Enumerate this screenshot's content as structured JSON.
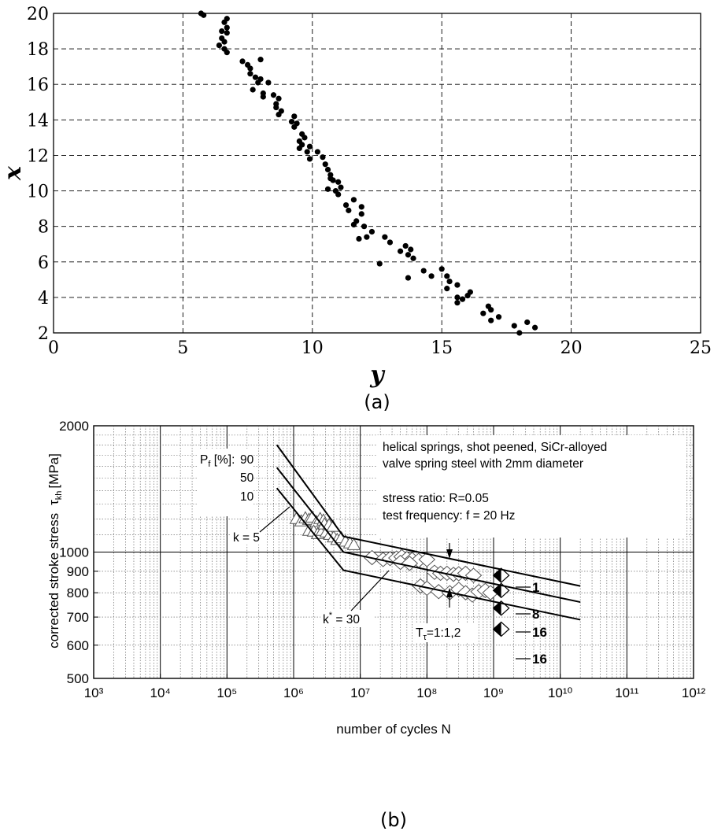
{
  "chart_data": [
    {
      "type": "scatter",
      "xlabel": "y",
      "ylabel": "x",
      "xlim": [
        0,
        25
      ],
      "ylim": [
        2,
        20
      ],
      "x_ticks": [
        0,
        5,
        10,
        15,
        20,
        25
      ],
      "y_ticks": [
        2,
        4,
        6,
        8,
        10,
        12,
        14,
        16,
        18,
        20
      ],
      "grid": true,
      "caption": "(a)",
      "points": [
        [
          5.7,
          20.0
        ],
        [
          5.8,
          19.9
        ],
        [
          6.7,
          19.7
        ],
        [
          6.6,
          19.5
        ],
        [
          6.7,
          19.2
        ],
        [
          6.5,
          19.0
        ],
        [
          6.7,
          18.9
        ],
        [
          6.5,
          18.6
        ],
        [
          6.6,
          18.4
        ],
        [
          6.4,
          18.2
        ],
        [
          6.6,
          18.0
        ],
        [
          6.7,
          17.8
        ],
        [
          7.3,
          17.3
        ],
        [
          8.0,
          17.4
        ],
        [
          7.5,
          17.1
        ],
        [
          7.6,
          16.9
        ],
        [
          7.6,
          16.6
        ],
        [
          7.8,
          16.4
        ],
        [
          8.0,
          16.3
        ],
        [
          7.9,
          16.1
        ],
        [
          8.3,
          16.1
        ],
        [
          7.7,
          15.7
        ],
        [
          8.1,
          15.5
        ],
        [
          8.1,
          15.3
        ],
        [
          8.5,
          15.4
        ],
        [
          8.7,
          15.2
        ],
        [
          8.6,
          14.9
        ],
        [
          8.6,
          14.7
        ],
        [
          8.8,
          14.5
        ],
        [
          8.7,
          14.3
        ],
        [
          9.3,
          14.2
        ],
        [
          9.2,
          13.9
        ],
        [
          9.4,
          13.8
        ],
        [
          9.3,
          13.6
        ],
        [
          9.6,
          13.2
        ],
        [
          9.7,
          13.0
        ],
        [
          9.5,
          12.8
        ],
        [
          9.6,
          12.6
        ],
        [
          9.9,
          12.5
        ],
        [
          9.5,
          12.4
        ],
        [
          9.8,
          12.2
        ],
        [
          10.2,
          12.2
        ],
        [
          9.9,
          11.8
        ],
        [
          10.4,
          11.9
        ],
        [
          10.5,
          11.5
        ],
        [
          10.6,
          11.2
        ],
        [
          10.7,
          10.9
        ],
        [
          10.7,
          10.7
        ],
        [
          10.8,
          10.6
        ],
        [
          11.0,
          10.5
        ],
        [
          11.1,
          10.2
        ],
        [
          10.9,
          10.0
        ],
        [
          11.0,
          9.8
        ],
        [
          10.6,
          10.1
        ],
        [
          11.6,
          9.5
        ],
        [
          11.3,
          9.2
        ],
        [
          11.4,
          8.9
        ],
        [
          11.9,
          9.1
        ],
        [
          11.9,
          8.7
        ],
        [
          11.7,
          8.3
        ],
        [
          11.6,
          8.1
        ],
        [
          12.0,
          8.0
        ],
        [
          12.3,
          7.7
        ],
        [
          11.8,
          7.3
        ],
        [
          12.1,
          7.4
        ],
        [
          12.8,
          7.4
        ],
        [
          13.0,
          7.1
        ],
        [
          13.6,
          6.9
        ],
        [
          13.4,
          6.6
        ],
        [
          13.8,
          6.7
        ],
        [
          13.7,
          6.4
        ],
        [
          13.9,
          6.2
        ],
        [
          12.6,
          5.9
        ],
        [
          13.7,
          5.1
        ],
        [
          14.3,
          5.5
        ],
        [
          14.6,
          5.2
        ],
        [
          15.0,
          5.6
        ],
        [
          15.2,
          5.2
        ],
        [
          15.3,
          4.9
        ],
        [
          15.6,
          4.7
        ],
        [
          15.2,
          4.5
        ],
        [
          16.1,
          4.3
        ],
        [
          16.0,
          4.1
        ],
        [
          15.6,
          4.0
        ],
        [
          15.8,
          3.9
        ],
        [
          15.6,
          3.7
        ],
        [
          16.8,
          3.5
        ],
        [
          16.9,
          3.3
        ],
        [
          16.6,
          3.1
        ],
        [
          17.2,
          2.9
        ],
        [
          16.9,
          2.7
        ],
        [
          17.8,
          2.4
        ],
        [
          18.3,
          2.6
        ],
        [
          18.6,
          2.3
        ],
        [
          18.0,
          2.0
        ]
      ]
    },
    {
      "type": "line",
      "xscale": "log",
      "yscale": "log",
      "xlabel": "number of cycles   N",
      "ylabel": "corrected stroke stress  τkh [MPa]",
      "xlim": [
        1000,
        1000000000000
      ],
      "ylim": [
        500,
        2000
      ],
      "x_ticks": [
        "10³",
        "10⁴",
        "10⁵",
        "10⁶",
        "10⁷",
        "10⁸",
        "10⁹",
        "10¹⁰",
        "10¹¹",
        "10¹²"
      ],
      "y_ticks": [
        500,
        600,
        700,
        800,
        900,
        1000,
        2000
      ],
      "caption": "(b)",
      "legend_title": "Pf [%]:",
      "series": [
        {
          "name": "90",
          "x": [
            560000,
            5600000,
            20000000000
          ],
          "y": [
            1800,
            1090,
            830
          ]
        },
        {
          "name": "50",
          "x": [
            560000,
            5600000,
            20000000000
          ],
          "y": [
            1590,
            1000,
            760
          ]
        },
        {
          "name": "10",
          "x": [
            560000,
            5600000,
            20000000000
          ],
          "y": [
            1420,
            905,
            690
          ]
        }
      ],
      "markers": {
        "triangles": [
          [
            1100000,
            1200
          ],
          [
            1300000,
            1185
          ],
          [
            1500000,
            1205
          ],
          [
            1700000,
            1195
          ],
          [
            1900000,
            1210
          ],
          [
            2200000,
            1180
          ],
          [
            2500000,
            1200
          ],
          [
            2800000,
            1190
          ],
          [
            1700000,
            1125
          ],
          [
            2000000,
            1120
          ],
          [
            2300000,
            1105
          ],
          [
            2700000,
            1125
          ],
          [
            3100000,
            1115
          ],
          [
            3500000,
            1100
          ],
          [
            4000000,
            1085
          ],
          [
            4500000,
            1070
          ],
          [
            5200000,
            1080
          ],
          [
            6000000,
            1060
          ],
          [
            7000000,
            1050
          ],
          [
            8000000,
            1040
          ],
          [
            2900000,
            1165
          ],
          [
            3400000,
            1160
          ],
          [
            3900000,
            1150
          ]
        ],
        "diamonds": [
          [
            15000000,
            970
          ],
          [
            22000000,
            960
          ],
          [
            28000000,
            965
          ],
          [
            35000000,
            968
          ],
          [
            42000000,
            975
          ],
          [
            50000000,
            965
          ],
          [
            60000000,
            960
          ],
          [
            75000000,
            955
          ],
          [
            100000000,
            960
          ],
          [
            40000000,
            945
          ],
          [
            55000000,
            940
          ],
          [
            130000000,
            895
          ],
          [
            160000000,
            890
          ],
          [
            200000000,
            890
          ],
          [
            250000000,
            885
          ],
          [
            300000000,
            888
          ],
          [
            380000000,
            890
          ],
          [
            500000000,
            880
          ],
          [
            80000000,
            830
          ],
          [
            100000000,
            820
          ],
          [
            150000000,
            805
          ],
          [
            220000000,
            800
          ],
          [
            300000000,
            815
          ],
          [
            380000000,
            800
          ],
          [
            480000000,
            790
          ],
          [
            600000000,
            805
          ],
          [
            750000000,
            810
          ],
          [
            900000000,
            800
          ]
        ],
        "half_filled": [
          [
            1300000000,
            880
          ],
          [
            1300000000,
            810
          ],
          [
            1300000000,
            735
          ],
          [
            1300000000,
            655
          ]
        ]
      },
      "annotations": {
        "pf_title": "P",
        "pf_sub": "f",
        "pf_unit": " [%]:",
        "pf_levels": [
          "90",
          "50",
          "10"
        ],
        "k": "k = 5",
        "k_star": "k",
        "k_star_sup": "*",
        "k_star_val": " = 30",
        "t_ratio": "T",
        "t_ratio_sub": "τ",
        "t_ratio_val": "=1:1,2",
        "note_line1": "helical springs, shot peened, SiCr-alloyed",
        "note_line2": "valve spring steel with 2mm diameter",
        "note_line3": "stress ratio: R=0.05",
        "note_line4": "test frequency: f = 20 Hz",
        "levels": [
          "1",
          "8",
          "16",
          "16"
        ],
        "ylabel_main": "corrected stroke stress",
        "ylabel_sym": "τ",
        "ylabel_sub": "kh",
        "ylabel_unit": "[MPa]"
      }
    }
  ]
}
